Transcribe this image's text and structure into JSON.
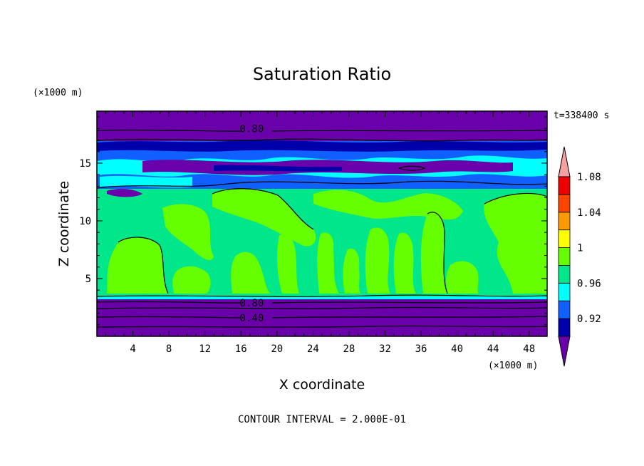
{
  "chart_data": {
    "type": "heatmap",
    "title": "Saturation Ratio",
    "xlabel": "X coordinate",
    "ylabel": "Z coordinate",
    "x_unit": "(×1000 m)",
    "y_unit": "(×1000 m)",
    "time_label": "t=338400 s",
    "footer": "CONTOUR INTERVAL = 2.000E-01",
    "xlim": [
      0,
      50
    ],
    "ylim": [
      0,
      19.5
    ],
    "x_ticks": [
      "4",
      "8",
      "12",
      "16",
      "20",
      "24",
      "28",
      "32",
      "36",
      "40",
      "44",
      "48"
    ],
    "x_tick_values": [
      4,
      8,
      12,
      16,
      20,
      24,
      28,
      32,
      36,
      40,
      44,
      48
    ],
    "y_ticks": [
      "5",
      "10",
      "15"
    ],
    "y_tick_values": [
      5,
      10,
      15
    ],
    "contour_labels": [
      {
        "text": "0.80",
        "x": 17.2,
        "z": 18.0
      },
      {
        "text": "0.80",
        "x": 17.2,
        "z": 2.9
      },
      {
        "text": "0.40",
        "x": 17.2,
        "z": 1.6
      }
    ],
    "colorbar": {
      "labels": [
        "1.08",
        "1.04",
        "1",
        "0.96",
        "0.92"
      ],
      "levels": [
        {
          "upper": "0.92",
          "color": "#6a00aa"
        },
        {
          "upper": "0.94",
          "color": "#0000aa"
        },
        {
          "upper": "0.96",
          "color": "#1060ff"
        },
        {
          "upper": "0.98",
          "color": "#00ffff"
        },
        {
          "upper": "1.00",
          "color": "#00e68a"
        },
        {
          "upper": "1.02",
          "color": "#66ff00"
        },
        {
          "upper": "1.04",
          "color": "#ffff00"
        },
        {
          "upper": "1.06",
          "color": "#ff9900"
        },
        {
          "upper": "1.08",
          "color": "#ff4400"
        },
        {
          "upper": "1.10",
          "color": "#ee0000"
        },
        {
          "upper": ">1.10",
          "color": "#f6a0a0"
        }
      ]
    },
    "layers": [
      {
        "z_range": [
          0,
          3.5
        ],
        "dominant_value": "<0.92",
        "color": "#6a00aa"
      },
      {
        "z_range": [
          3.5,
          13
        ],
        "dominant_value": "0.98-1.02",
        "color": "#00e68a"
      },
      {
        "z_range": [
          13,
          14.6
        ],
        "dominant_value": "0.94-0.98",
        "color": "#1060ff"
      },
      {
        "z_range": [
          14.6,
          17.2
        ],
        "dominant_value": "0.92-1.00",
        "color": "#1060ff"
      },
      {
        "z_range": [
          17.2,
          19.5
        ],
        "dominant_value": "<0.92",
        "color": "#6a00aa"
      }
    ]
  }
}
